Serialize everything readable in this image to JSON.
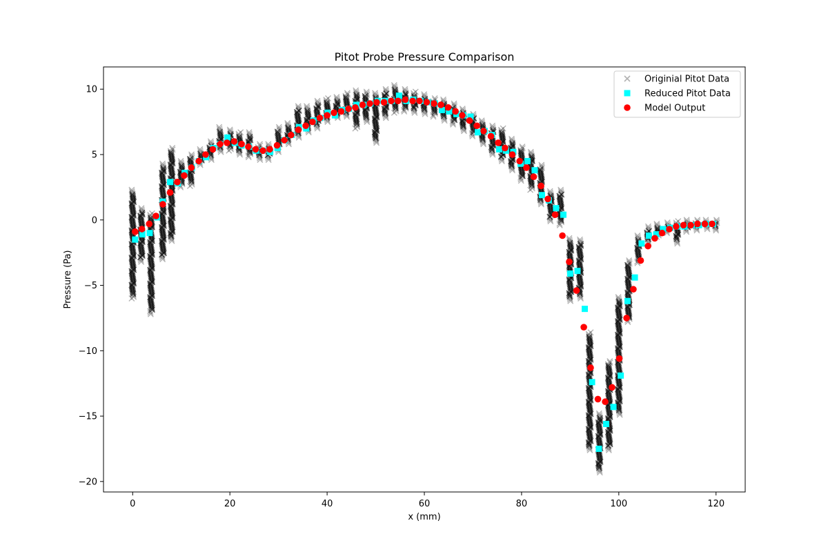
{
  "chart_data": {
    "type": "scatter",
    "title": "Pitot Probe Pressure Comparison",
    "xlabel": "x (mm)",
    "ylabel": "Pressure (Pa)",
    "xlim": [
      -6,
      126
    ],
    "ylim": [
      -20.8,
      11.7
    ],
    "xticks": [
      0,
      20,
      40,
      60,
      80,
      100,
      120
    ],
    "yticks": [
      -20,
      -15,
      -10,
      -5,
      0,
      5,
      10
    ],
    "xtick_labels": [
      "0",
      "20",
      "40",
      "60",
      "80",
      "100",
      "120"
    ],
    "ytick_labels": [
      "−20",
      "−15",
      "−10",
      "−5",
      "0",
      "5",
      "10"
    ],
    "grid": false,
    "legend_position": "upper-right",
    "series": [
      {
        "name": "Originial Pitot Data",
        "marker": "x",
        "color": "#000000",
        "style": "clusters",
        "clusters": [
          {
            "x": 0.0,
            "ymin": -6.0,
            "ymax": 2.3
          },
          {
            "x": 1.8,
            "ymin": -3.2,
            "ymax": 0.9
          },
          {
            "x": 3.8,
            "ymin": -7.2,
            "ymax": 0.5
          },
          {
            "x": 6.2,
            "ymin": -3.0,
            "ymax": 4.3
          },
          {
            "x": 8.0,
            "ymin": -1.6,
            "ymax": 5.5
          },
          {
            "x": 10.0,
            "ymin": 2.5,
            "ymax": 4.5
          },
          {
            "x": 12.0,
            "ymin": 2.6,
            "ymax": 5.0
          },
          {
            "x": 14.0,
            "ymin": 4.2,
            "ymax": 5.4
          },
          {
            "x": 16.0,
            "ymin": 4.6,
            "ymax": 6.0
          },
          {
            "x": 18.0,
            "ymin": 5.2,
            "ymax": 7.1
          },
          {
            "x": 20.0,
            "ymin": 5.3,
            "ymax": 6.9
          },
          {
            "x": 22.0,
            "ymin": 5.0,
            "ymax": 6.7
          },
          {
            "x": 24.0,
            "ymin": 4.8,
            "ymax": 6.7
          },
          {
            "x": 26.0,
            "ymin": 4.6,
            "ymax": 5.8
          },
          {
            "x": 28.0,
            "ymin": 4.6,
            "ymax": 5.8
          },
          {
            "x": 30.0,
            "ymin": 5.2,
            "ymax": 7.1
          },
          {
            "x": 32.0,
            "ymin": 5.8,
            "ymax": 7.4
          },
          {
            "x": 34.0,
            "ymin": 6.3,
            "ymax": 8.7
          },
          {
            "x": 36.0,
            "ymin": 6.7,
            "ymax": 8.7
          },
          {
            "x": 38.0,
            "ymin": 7.0,
            "ymax": 9.1
          },
          {
            "x": 40.0,
            "ymin": 7.5,
            "ymax": 9.3
          },
          {
            "x": 42.0,
            "ymin": 7.8,
            "ymax": 9.4
          },
          {
            "x": 44.0,
            "ymin": 7.9,
            "ymax": 9.7
          },
          {
            "x": 46.0,
            "ymin": 7.0,
            "ymax": 9.9
          },
          {
            "x": 48.0,
            "ymin": 7.5,
            "ymax": 9.8
          },
          {
            "x": 50.0,
            "ymin": 5.9,
            "ymax": 9.7
          },
          {
            "x": 52.0,
            "ymin": 7.8,
            "ymax": 10.0
          },
          {
            "x": 54.0,
            "ymin": 8.2,
            "ymax": 10.3
          },
          {
            "x": 56.0,
            "ymin": 8.3,
            "ymax": 10.0
          },
          {
            "x": 58.0,
            "ymin": 8.2,
            "ymax": 9.8
          },
          {
            "x": 60.0,
            "ymin": 8.1,
            "ymax": 9.6
          },
          {
            "x": 62.0,
            "ymin": 7.9,
            "ymax": 9.3
          },
          {
            "x": 64.0,
            "ymin": 7.6,
            "ymax": 9.2
          },
          {
            "x": 66.0,
            "ymin": 7.3,
            "ymax": 8.9
          },
          {
            "x": 68.0,
            "ymin": 6.8,
            "ymax": 8.5
          },
          {
            "x": 70.0,
            "ymin": 6.4,
            "ymax": 8.1
          },
          {
            "x": 72.0,
            "ymin": 5.8,
            "ymax": 7.6
          },
          {
            "x": 74.0,
            "ymin": 5.0,
            "ymax": 7.2
          },
          {
            "x": 76.0,
            "ymin": 4.5,
            "ymax": 7.0
          },
          {
            "x": 78.0,
            "ymin": 3.8,
            "ymax": 6.2
          },
          {
            "x": 80.0,
            "ymin": 3.0,
            "ymax": 5.6
          },
          {
            "x": 82.0,
            "ymin": 2.3,
            "ymax": 5.2
          },
          {
            "x": 84.0,
            "ymin": 1.2,
            "ymax": 4.2
          },
          {
            "x": 86.0,
            "ymin": -0.1,
            "ymax": 2.2
          },
          {
            "x": 88.0,
            "ymin": -0.4,
            "ymax": 2.3
          },
          {
            "x": 90.0,
            "ymin": -6.2,
            "ymax": -1.4
          },
          {
            "x": 92.0,
            "ymin": -6.0,
            "ymax": -1.5
          },
          {
            "x": 94.0,
            "ymin": -17.6,
            "ymax": -8.6
          },
          {
            "x": 96.0,
            "ymin": -19.3,
            "ymax": -14.8
          },
          {
            "x": 98.0,
            "ymin": -17.6,
            "ymax": -10.8
          },
          {
            "x": 100.0,
            "ymin": -14.9,
            "ymax": -5.9
          },
          {
            "x": 102.0,
            "ymin": -7.8,
            "ymax": -3.1
          },
          {
            "x": 104.0,
            "ymin": -3.3,
            "ymax": -1.2
          },
          {
            "x": 106.0,
            "ymin": -1.8,
            "ymax": -0.5
          },
          {
            "x": 108.0,
            "ymin": -1.3,
            "ymax": -0.3
          },
          {
            "x": 110.0,
            "ymin": -1.0,
            "ymax": -0.2
          },
          {
            "x": 112.0,
            "ymin": -1.8,
            "ymax": -0.1
          },
          {
            "x": 114.0,
            "ymin": -0.9,
            "ymax": 0.0
          },
          {
            "x": 116.0,
            "ymin": -0.8,
            "ymax": 0.0
          },
          {
            "x": 118.0,
            "ymin": -0.7,
            "ymax": 0.0
          },
          {
            "x": 120.0,
            "ymin": -0.8,
            "ymax": 0.0
          }
        ]
      },
      {
        "name": "Reduced Pitot Data",
        "marker": "square",
        "color": "#00ffff",
        "x": [
          0.5,
          2.0,
          3.5,
          5.0,
          6.2,
          7.7,
          9.3,
          10.7,
          12.2,
          13.6,
          15.1,
          16.6,
          18.0,
          19.5,
          21.0,
          22.4,
          23.9,
          25.4,
          26.8,
          28.3,
          29.8,
          31.2,
          32.7,
          34.2,
          35.7,
          37.2,
          38.6,
          40.1,
          41.6,
          43.1,
          44.5,
          46.0,
          47.5,
          48.9,
          50.4,
          51.9,
          53.3,
          54.8,
          56.3,
          57.7,
          59.2,
          60.7,
          62.2,
          63.6,
          65.1,
          66.6,
          68.0,
          69.5,
          71.0,
          72.4,
          73.9,
          75.4,
          76.8,
          78.3,
          79.8,
          81.2,
          82.7,
          84.2,
          85.6,
          87.1,
          88.6,
          90.0,
          91.5,
          93.0,
          94.5,
          95.9,
          97.4,
          98.9,
          100.4,
          101.8,
          103.3,
          104.7,
          106.2,
          107.7,
          109.1,
          110.6,
          112.1,
          113.5,
          115.0,
          116.5,
          117.9,
          119.4
        ],
        "y": [
          -1.5,
          -1.1,
          -1.0,
          0.2,
          1.4,
          2.9,
          2.8,
          3.6,
          4.0,
          4.5,
          4.8,
          5.5,
          5.8,
          6.3,
          5.9,
          5.7,
          5.6,
          5.3,
          5.3,
          5.2,
          5.5,
          6.1,
          6.5,
          7.1,
          7.0,
          7.6,
          7.8,
          8.2,
          8.0,
          8.4,
          8.5,
          8.8,
          8.8,
          8.9,
          9.1,
          9.1,
          9.1,
          9.5,
          9.1,
          9.2,
          9.1,
          9.0,
          8.9,
          8.4,
          8.3,
          8.1,
          8.0,
          7.9,
          6.7,
          6.8,
          6.5,
          5.4,
          5.3,
          5.2,
          4.3,
          4.5,
          3.8,
          1.9,
          1.5,
          0.9,
          0.4,
          -4.1,
          -3.9,
          -6.8,
          -12.4,
          -17.5,
          -15.6,
          -14.3,
          -11.9,
          -6.2,
          -4.4,
          -1.8,
          -1.2,
          -1.1,
          -0.7,
          -0.6,
          -0.5,
          -0.5,
          -0.4,
          -0.4,
          -0.3,
          -0.3
        ]
      },
      {
        "name": "Model Output",
        "marker": "circle",
        "color": "#ff0000",
        "x": [
          0.5,
          1.9,
          3.4,
          4.8,
          6.2,
          7.7,
          9.2,
          10.6,
          12.1,
          13.6,
          15.0,
          16.5,
          18.0,
          19.4,
          20.9,
          22.4,
          23.8,
          25.3,
          26.8,
          28.2,
          29.7,
          31.2,
          32.6,
          34.1,
          35.6,
          37.0,
          38.5,
          40.0,
          41.4,
          42.9,
          44.4,
          45.8,
          47.3,
          48.8,
          50.2,
          51.7,
          53.2,
          54.6,
          56.1,
          57.6,
          59.0,
          60.5,
          62.0,
          63.4,
          64.9,
          66.4,
          67.8,
          69.3,
          70.8,
          72.2,
          73.7,
          75.2,
          76.6,
          78.1,
          79.6,
          81.0,
          82.5,
          84.0,
          85.4,
          86.9,
          88.4,
          89.8,
          91.3,
          92.8,
          94.2,
          95.7,
          97.2,
          98.6,
          100.1,
          101.6,
          103.0,
          104.5,
          106.0,
          107.4,
          108.9,
          110.4,
          111.8,
          113.3,
          114.8,
          116.2,
          117.7,
          119.2
        ],
        "y": [
          -0.9,
          -0.7,
          -0.3,
          0.3,
          1.2,
          2.1,
          2.9,
          3.4,
          4.0,
          4.5,
          5.0,
          5.4,
          5.8,
          5.9,
          6.0,
          5.8,
          5.6,
          5.4,
          5.3,
          5.4,
          5.7,
          6.1,
          6.5,
          6.9,
          7.2,
          7.5,
          7.8,
          8.0,
          8.2,
          8.3,
          8.5,
          8.6,
          8.8,
          8.9,
          9.0,
          9.0,
          9.1,
          9.1,
          9.2,
          9.1,
          9.1,
          9.0,
          8.9,
          8.8,
          8.6,
          8.3,
          8.0,
          7.6,
          7.2,
          6.8,
          6.4,
          5.9,
          5.5,
          5.0,
          4.5,
          4.0,
          3.3,
          2.6,
          1.6,
          0.4,
          -1.2,
          -3.2,
          -5.4,
          -8.2,
          -11.3,
          -13.7,
          -13.9,
          -12.8,
          -10.6,
          -7.5,
          -5.3,
          -3.1,
          -2.0,
          -1.4,
          -1.0,
          -0.7,
          -0.5,
          -0.4,
          -0.4,
          -0.3,
          -0.3,
          -0.3
        ]
      }
    ]
  }
}
